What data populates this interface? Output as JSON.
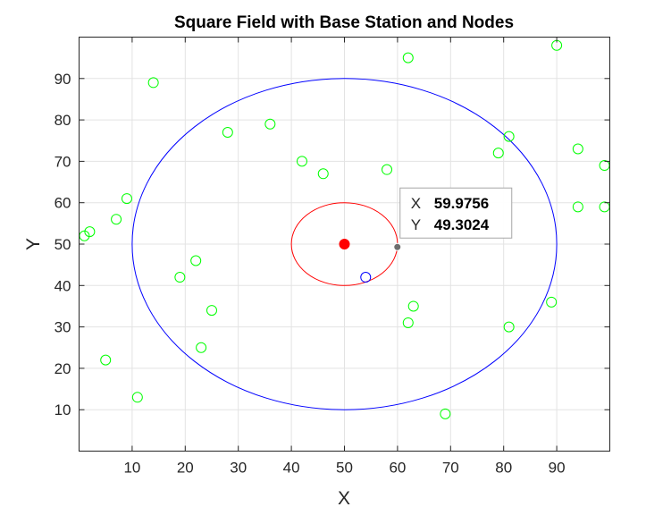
{
  "chart_data": {
    "type": "scatter",
    "title": "Square Field with Base Station and Nodes",
    "xlabel": "X",
    "ylabel": "Y",
    "xlim": [
      0,
      100
    ],
    "ylim": [
      0,
      100
    ],
    "grid": true,
    "x_ticks": [
      10,
      20,
      30,
      40,
      50,
      60,
      70,
      80,
      90
    ],
    "y_ticks": [
      10,
      20,
      30,
      40,
      50,
      60,
      70,
      80,
      90
    ],
    "base_station": {
      "x": 50,
      "y": 50,
      "color": "#ff0000"
    },
    "circles": [
      {
        "cx": 50,
        "cy": 50,
        "r": 10,
        "color": "#ff0000"
      },
      {
        "cx": 50,
        "cy": 50,
        "r": 40,
        "color": "#0000ff"
      }
    ],
    "series": [
      {
        "color": "#00ff00",
        "points": [
          [
            1,
            52
          ],
          [
            2,
            53
          ],
          [
            5,
            22
          ],
          [
            7,
            56
          ],
          [
            9,
            61
          ],
          [
            11,
            13
          ],
          [
            14,
            89
          ],
          [
            19,
            42
          ],
          [
            22,
            46
          ],
          [
            23,
            25
          ],
          [
            25,
            34
          ],
          [
            28,
            77
          ],
          [
            36,
            79
          ],
          [
            42,
            70
          ],
          [
            46,
            67
          ],
          [
            58,
            68
          ],
          [
            62,
            95
          ],
          [
            62,
            31
          ],
          [
            63,
            35
          ],
          [
            69,
            9
          ],
          [
            79,
            72
          ],
          [
            81,
            76
          ],
          [
            81,
            30
          ],
          [
            89,
            36
          ],
          [
            90,
            98
          ],
          [
            94,
            73
          ],
          [
            94,
            59
          ],
          [
            99,
            69
          ],
          [
            99,
            59
          ]
        ]
      },
      {
        "color": "#0000ff",
        "points": [
          [
            54,
            42
          ]
        ]
      }
    ],
    "datatip": {
      "point": {
        "x": 59.9756,
        "y": 49.3024
      },
      "x_label": "X",
      "x_value": "59.9756",
      "y_label": "Y",
      "y_value": "49.3024"
    }
  }
}
